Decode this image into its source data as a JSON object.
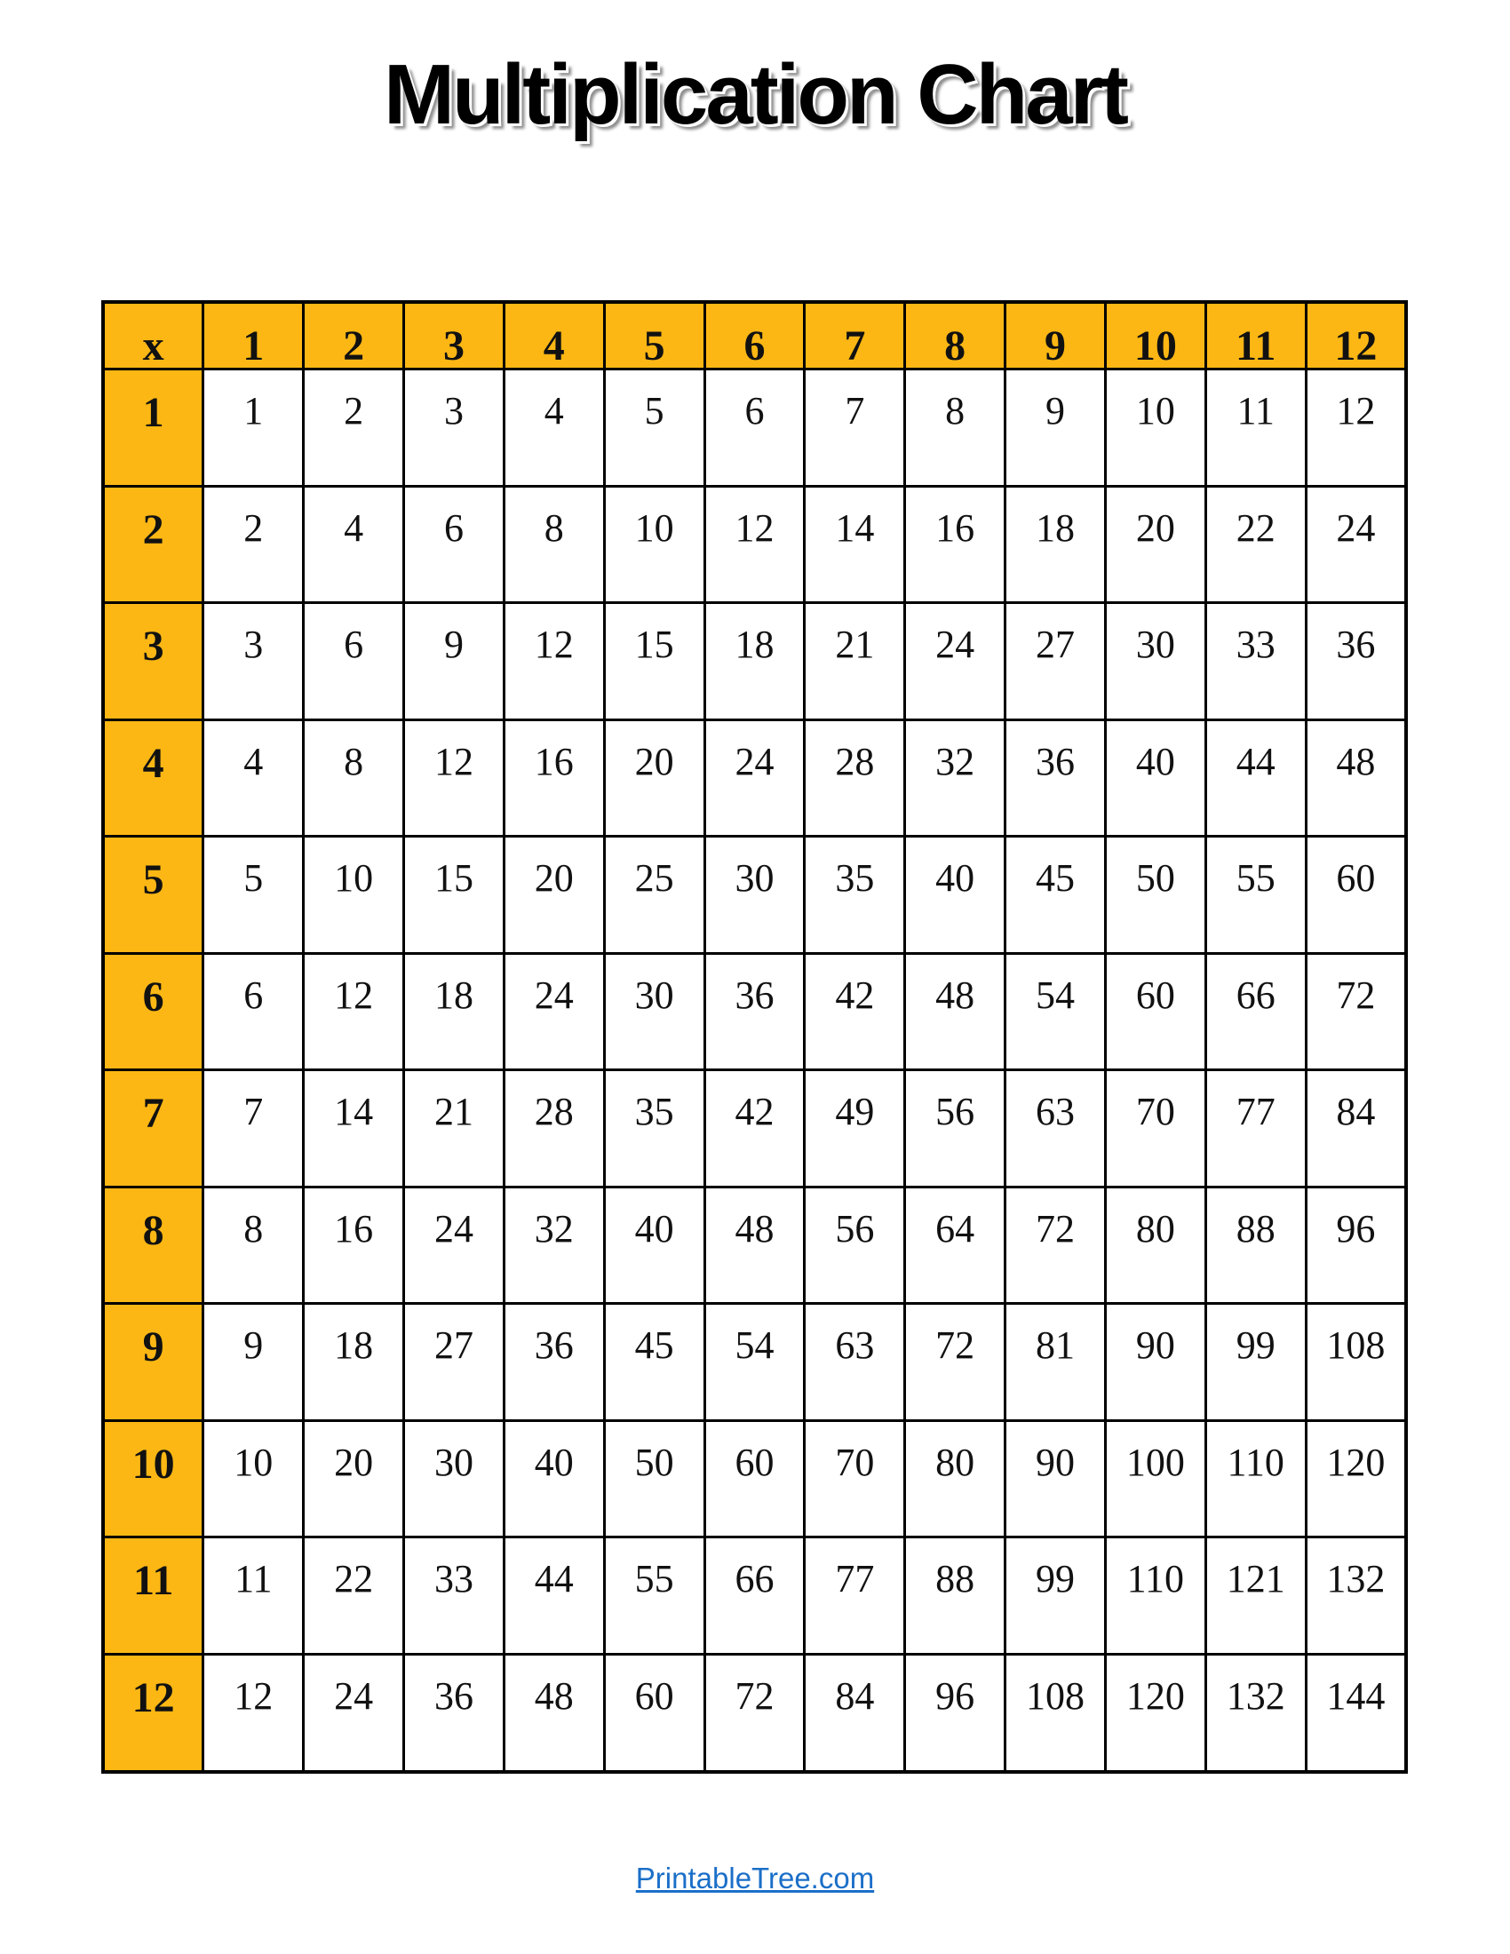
{
  "title": "Multiplication Chart",
  "footer": {
    "link_label": "PrintableTree.com"
  },
  "colors": {
    "header_bg": "#FCB714",
    "border": "#000000",
    "body_text": "#111111",
    "link": "#1B6FC8"
  },
  "chart_data": {
    "type": "table",
    "title": "Multiplication Chart",
    "corner_label": "x",
    "col_headers": [
      "1",
      "2",
      "3",
      "4",
      "5",
      "6",
      "7",
      "8",
      "9",
      "10",
      "11",
      "12"
    ],
    "rows": [
      {
        "header": "1",
        "values": [
          1,
          2,
          3,
          4,
          5,
          6,
          7,
          8,
          9,
          10,
          11,
          12
        ]
      },
      {
        "header": "2",
        "values": [
          2,
          4,
          6,
          8,
          10,
          12,
          14,
          16,
          18,
          20,
          22,
          24
        ]
      },
      {
        "header": "3",
        "values": [
          3,
          6,
          9,
          12,
          15,
          18,
          21,
          24,
          27,
          30,
          33,
          36
        ]
      },
      {
        "header": "4",
        "values": [
          4,
          8,
          12,
          16,
          20,
          24,
          28,
          32,
          36,
          40,
          44,
          48
        ]
      },
      {
        "header": "5",
        "values": [
          5,
          10,
          15,
          20,
          25,
          30,
          35,
          40,
          45,
          50,
          55,
          60
        ]
      },
      {
        "header": "6",
        "values": [
          6,
          12,
          18,
          24,
          30,
          36,
          42,
          48,
          54,
          60,
          66,
          72
        ]
      },
      {
        "header": "7",
        "values": [
          7,
          14,
          21,
          28,
          35,
          42,
          49,
          56,
          63,
          70,
          77,
          84
        ]
      },
      {
        "header": "8",
        "values": [
          8,
          16,
          24,
          32,
          40,
          48,
          56,
          64,
          72,
          80,
          88,
          96
        ]
      },
      {
        "header": "9",
        "values": [
          9,
          18,
          27,
          36,
          45,
          54,
          63,
          72,
          81,
          90,
          99,
          108
        ]
      },
      {
        "header": "10",
        "values": [
          10,
          20,
          30,
          40,
          50,
          60,
          70,
          80,
          90,
          100,
          110,
          120
        ]
      },
      {
        "header": "11",
        "values": [
          11,
          22,
          33,
          44,
          55,
          66,
          77,
          88,
          99,
          110,
          121,
          132
        ]
      },
      {
        "header": "12",
        "values": [
          12,
          24,
          36,
          48,
          60,
          72,
          84,
          96,
          108,
          120,
          132,
          144
        ]
      }
    ]
  }
}
